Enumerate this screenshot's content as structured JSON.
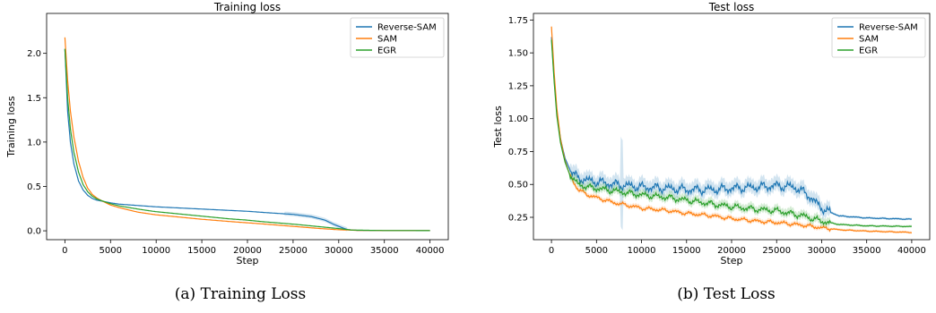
{
  "chart_data": [
    {
      "type": "line",
      "title": "Training loss",
      "xlabel": "Step",
      "ylabel": "Training loss",
      "caption": "(a) Training Loss",
      "xlim": [
        -2000,
        42000
      ],
      "ylim": [
        -0.1,
        2.45
      ],
      "xticks": [
        0,
        5000,
        10000,
        15000,
        20000,
        25000,
        30000,
        35000,
        40000
      ],
      "yticks": [
        0.0,
        0.5,
        1.0,
        1.5,
        2.0
      ],
      "ytick_labels": [
        "0.0",
        "0.5",
        "1.0",
        "1.5",
        "2.0"
      ],
      "legend_position": "top-right",
      "series": [
        {
          "name": "Reverse-SAM",
          "color": "#1f77b4",
          "x": [
            0,
            300,
            600,
            1000,
            1500,
            2000,
            2500,
            3000,
            3500,
            4000,
            5000,
            6000,
            8000,
            10000,
            12000,
            15000,
            18000,
            20000,
            22000,
            25000,
            27000,
            28500,
            29500,
            30500,
            31000,
            32000,
            35000,
            40000
          ],
          "y": [
            2.05,
            1.35,
            1.0,
            0.75,
            0.56,
            0.46,
            0.4,
            0.365,
            0.345,
            0.335,
            0.315,
            0.3,
            0.285,
            0.27,
            0.26,
            0.245,
            0.23,
            0.22,
            0.205,
            0.185,
            0.16,
            0.12,
            0.07,
            0.03,
            0.012,
            0.005,
            0.003,
            0.002
          ]
        },
        {
          "name": "SAM",
          "color": "#ff7f0e",
          "x": [
            0,
            300,
            600,
            1000,
            1500,
            2000,
            2500,
            3000,
            3500,
            4000,
            5000,
            6000,
            8000,
            10000,
            12000,
            15000,
            18000,
            20000,
            22000,
            25000,
            28000,
            30000,
            32000,
            35000,
            40000
          ],
          "y": [
            2.18,
            1.7,
            1.35,
            1.05,
            0.78,
            0.6,
            0.48,
            0.41,
            0.37,
            0.34,
            0.29,
            0.26,
            0.21,
            0.18,
            0.16,
            0.13,
            0.105,
            0.09,
            0.075,
            0.05,
            0.025,
            0.012,
            0.005,
            0.003,
            0.002
          ]
        },
        {
          "name": "EGR",
          "color": "#2ca02c",
          "x": [
            0,
            300,
            600,
            1000,
            1500,
            2000,
            2500,
            3000,
            3500,
            4000,
            5000,
            6000,
            8000,
            10000,
            12000,
            15000,
            18000,
            20000,
            22000,
            25000,
            28000,
            30000,
            31500,
            35000,
            40000
          ],
          "y": [
            2.05,
            1.5,
            1.15,
            0.88,
            0.66,
            0.52,
            0.44,
            0.39,
            0.36,
            0.34,
            0.305,
            0.28,
            0.245,
            0.215,
            0.195,
            0.165,
            0.135,
            0.12,
            0.1,
            0.075,
            0.045,
            0.025,
            0.008,
            0.003,
            0.002
          ]
        }
      ]
    },
    {
      "type": "line",
      "title": "Test loss",
      "xlabel": "Step",
      "ylabel": "Test loss",
      "caption": "(b) Test Loss",
      "xlim": [
        -2000,
        42000
      ],
      "ylim": [
        0.08,
        1.8
      ],
      "xticks": [
        0,
        5000,
        10000,
        15000,
        20000,
        25000,
        30000,
        35000,
        40000
      ],
      "yticks": [
        0.25,
        0.5,
        0.75,
        1.0,
        1.25,
        1.5,
        1.75
      ],
      "ytick_labels": [
        "0.25",
        "0.50",
        "0.75",
        "1.00",
        "1.25",
        "1.50",
        "1.75"
      ],
      "legend_position": "top-right",
      "series": [
        {
          "name": "Reverse-SAM",
          "color": "#1f77b4",
          "x": [
            0,
            300,
            600,
            1000,
            1500,
            2000,
            2500,
            3000,
            4000,
            5000,
            7000,
            10000,
            13000,
            15000,
            18000,
            20000,
            23000,
            25000,
            27000,
            28500,
            29500,
            30500,
            32000,
            35000,
            40000
          ],
          "y": [
            1.62,
            1.3,
            1.05,
            0.85,
            0.7,
            0.62,
            0.57,
            0.55,
            0.53,
            0.52,
            0.5,
            0.48,
            0.47,
            0.46,
            0.46,
            0.47,
            0.48,
            0.49,
            0.48,
            0.42,
            0.35,
            0.3,
            0.26,
            0.245,
            0.235
          ]
        },
        {
          "name": "SAM",
          "color": "#ff7f0e",
          "x": [
            0,
            300,
            600,
            1000,
            1500,
            2000,
            2500,
            3000,
            4000,
            5000,
            7000,
            10000,
            13000,
            15000,
            18000,
            20000,
            23000,
            25000,
            28000,
            30000,
            32000,
            35000,
            40000
          ],
          "y": [
            1.7,
            1.35,
            1.08,
            0.85,
            0.68,
            0.58,
            0.51,
            0.46,
            0.42,
            0.4,
            0.36,
            0.32,
            0.3,
            0.28,
            0.26,
            0.24,
            0.22,
            0.21,
            0.19,
            0.17,
            0.155,
            0.145,
            0.135
          ]
        },
        {
          "name": "EGR",
          "color": "#2ca02c",
          "x": [
            0,
            300,
            600,
            1000,
            1500,
            2000,
            2500,
            3000,
            4000,
            5000,
            7000,
            10000,
            13000,
            15000,
            18000,
            20000,
            23000,
            25000,
            28000,
            30000,
            32000,
            35000,
            40000
          ],
          "y": [
            1.6,
            1.28,
            1.02,
            0.82,
            0.67,
            0.58,
            0.53,
            0.5,
            0.48,
            0.47,
            0.45,
            0.42,
            0.4,
            0.38,
            0.35,
            0.33,
            0.31,
            0.3,
            0.26,
            0.22,
            0.195,
            0.185,
            0.18
          ]
        }
      ]
    }
  ]
}
